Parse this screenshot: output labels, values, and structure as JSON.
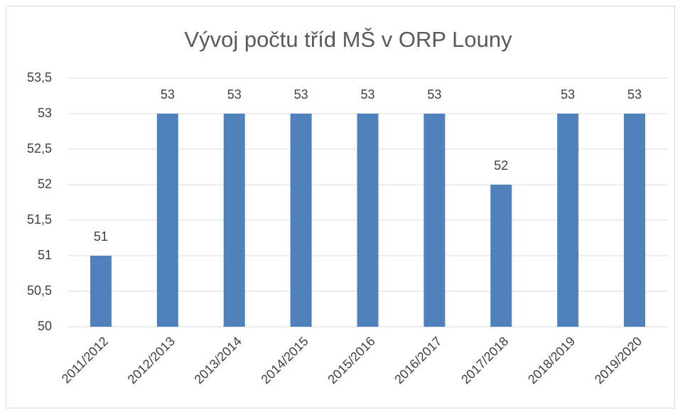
{
  "chart_data": {
    "type": "bar",
    "title": "Vývoj počtu tříd MŠ v ORP Louny",
    "categories": [
      "2011/2012",
      "2012/2013",
      "2013/2014",
      "2014/2015",
      "2015/2016",
      "2016/2017",
      "2017/2018",
      "2018/2019",
      "2019/2020"
    ],
    "values": [
      51,
      53,
      53,
      53,
      53,
      53,
      52,
      53,
      53
    ],
    "color": "#4f81bd",
    "ylim": [
      50,
      53.5
    ],
    "yticks": [
      50,
      {
        "value": 50.5,
        "label": "50,5"
      },
      51,
      {
        "value": 51.5,
        "label": "51,5"
      },
      52,
      {
        "value": 52.5,
        "label": "52,5"
      },
      53,
      {
        "value": 53.5,
        "label": "53,5"
      }
    ],
    "grid": true
  }
}
